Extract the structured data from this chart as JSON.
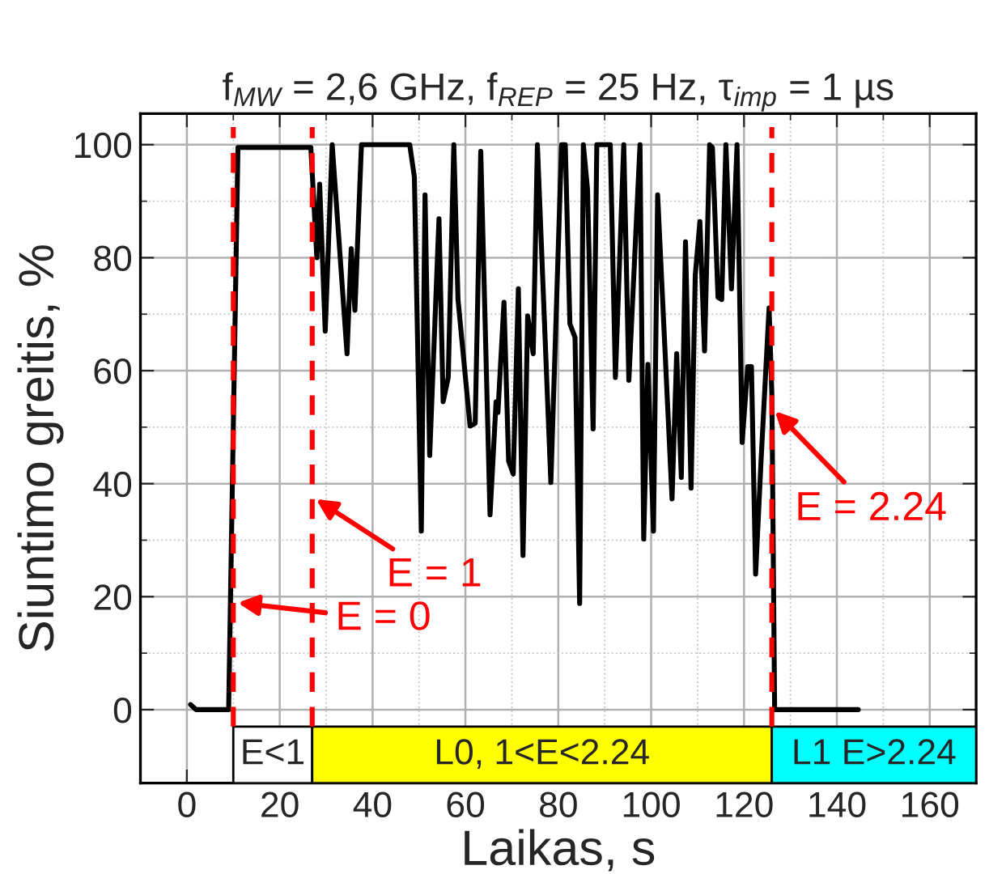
{
  "chart_data": {
    "type": "line",
    "title": "f$_{MW}$ = 2,6 GHz, f$_{REP}$ = 25 Hz, τ$_{imp}$ = 1 µs",
    "xlabel": "Laikas, s",
    "ylabel": "Siuntimo greitis, %",
    "series": [
      {
        "color": "#000000",
        "x": [
          0.8,
          2.0,
          9.0,
          11.0,
          26.7,
          28.0,
          28.6,
          29.8,
          31.3,
          34.5,
          35.4,
          36.2,
          37.6,
          48.0,
          49.0,
          50.5,
          51.3,
          52.3,
          54.3,
          55.2,
          56.3,
          57.5,
          58.4,
          61.0,
          62.1,
          63.3,
          65.3,
          66.6,
          67.0,
          68.3,
          69.3,
          70.3,
          71.4,
          72.4,
          73.4,
          74.6,
          75.5,
          78.4,
          80.7,
          81.5,
          82.5,
          83.6,
          84.6,
          85.4,
          86.3,
          87.5,
          88.3,
          91.2,
          92.3,
          94.1,
          95.2,
          97.6,
          98.4,
          99.3,
          100.5,
          101.4,
          104.5,
          105.5,
          106.5,
          107.4,
          108.6,
          109.5,
          110.5,
          111.5,
          112.6,
          113.2,
          114.4,
          115.2,
          116.1,
          117.3,
          118.5,
          119.6,
          120.8,
          121.6,
          122.5,
          123.7,
          125.4,
          126.0,
          126.6,
          144.6
        ],
        "values": [
          0.9,
          0,
          0,
          99.5,
          99.5,
          80,
          93,
          67,
          100,
          63,
          81.6,
          70.7,
          100,
          100,
          94.3,
          31.6,
          91.1,
          45,
          86.9,
          54.5,
          58.8,
          100,
          72.6,
          50.2,
          50.7,
          98.8,
          34.5,
          54.5,
          52.6,
          72.1,
          44,
          41.7,
          74.5,
          27.3,
          69.7,
          63,
          100,
          40.2,
          100,
          100,
          68.3,
          65.9,
          18.8,
          100,
          92.1,
          49.7,
          100,
          100,
          58.8,
          100,
          58.3,
          100,
          30.2,
          61.1,
          31.6,
          91.1,
          37.3,
          63,
          41.1,
          82.8,
          39.2,
          76.9,
          86.4,
          63.5,
          100,
          99.5,
          73,
          72.6,
          100,
          74.5,
          100,
          47.3,
          60.7,
          60.7,
          24,
          44.5,
          71.1,
          55.9,
          0,
          0
        ]
      }
    ],
    "xlim": [
      -10,
      170
    ],
    "xticks": [
      0,
      20,
      40,
      60,
      80,
      100,
      120,
      140,
      160
    ],
    "ylim": [
      -13,
      105.5
    ],
    "yticks": [
      0,
      20,
      40,
      60,
      80,
      100
    ],
    "grid": true,
    "line_style": "solid",
    "marker": "none",
    "ref_lines": [
      {
        "axis": "x",
        "value": 10,
        "color": "#ff0000",
        "line_style": "dashed"
      },
      {
        "axis": "x",
        "value": 27,
        "color": "#ff0000",
        "line_style": "dashed"
      },
      {
        "axis": "x",
        "value": 126,
        "color": "#ff0000",
        "line_style": "dashed"
      }
    ],
    "bands": [
      {
        "axis": "x",
        "from": 10,
        "to": 27,
        "label": "E<1",
        "color": "#ffffff"
      },
      {
        "axis": "x",
        "from": 27,
        "to": 126,
        "label": "L0, 1<E<2.24",
        "color": "#ffff00"
      },
      {
        "axis": "x",
        "from": 126,
        "to": 170,
        "label": "L1 E>2.24",
        "color": "#00ffff"
      }
    ],
    "annotations": [
      {
        "text": "E = 0",
        "x": 10,
        "y": 19
      },
      {
        "text": "E = 1",
        "x": 27,
        "y": 37.7
      },
      {
        "text": "E = 2.24",
        "x": 126,
        "y": 53.4
      }
    ]
  }
}
